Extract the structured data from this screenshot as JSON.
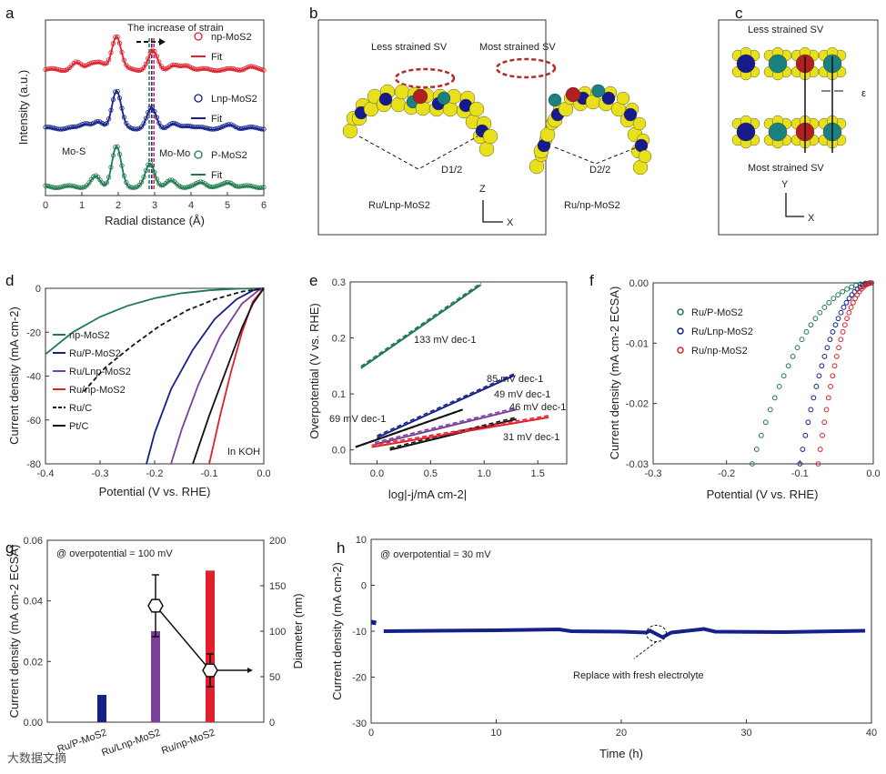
{
  "panel_labels": [
    "a",
    "b",
    "c",
    "d",
    "e",
    "f",
    "g",
    "h"
  ],
  "panel_b": {
    "left_title": "Less strained SV",
    "right_title": "Most strained SV",
    "left_d": "D1/2",
    "right_d": "D2/2",
    "left_name": "Ru/Lnp-MoS2",
    "right_name": "Ru/np-MoS2",
    "axis_z": "Z",
    "axis_x": "X"
  },
  "panel_c": {
    "top_title": "Less strained SV",
    "bottom_title": "Most strained SV",
    "epsilon": "ε",
    "axis_y": "Y",
    "axis_x": "X"
  },
  "watermark": "大数据文摘",
  "colors": {
    "green": "#1e7a4f",
    "blue": "#15208a",
    "purple": "#7a3f98",
    "red": "#e0202a",
    "black": "#111111"
  },
  "chart_data": [
    {
      "id": "a",
      "type": "line",
      "title": "The increase of strain",
      "xlabel": "Radial distance (Å)",
      "ylabel": "Intensity (a.u.)",
      "xlim": [
        0,
        6
      ],
      "xticks": [
        "0",
        "1",
        "2",
        "3",
        "4",
        "5",
        "6"
      ],
      "annotations": [
        "Mo-S",
        "Mo-Mo"
      ],
      "series": [
        {
          "name": "np-MoS2",
          "fit": "Fit",
          "color": "#e0202a",
          "offset": 2.1,
          "peaks": [
            [
              0.85,
              0.12
            ],
            [
              1.25,
              0.12
            ],
            [
              1.5,
              0.1
            ],
            [
              1.95,
              0.62
            ],
            [
              2.95,
              0.33
            ],
            [
              3.5,
              0.08
            ],
            [
              3.9,
              0.08
            ],
            [
              5.6,
              0.05
            ]
          ]
        },
        {
          "name": "Lnp-MoS2",
          "fit": "Fit",
          "color": "#15208a",
          "offset": 1.05,
          "peaks": [
            [
              1.1,
              0.1
            ],
            [
              1.45,
              0.1
            ],
            [
              1.95,
              0.68
            ],
            [
              2.92,
              0.36
            ],
            [
              3.5,
              0.07
            ],
            [
              3.9,
              0.06
            ],
            [
              5.1,
              0.06
            ]
          ]
        },
        {
          "name": "P-MoS2",
          "fit": "Fit",
          "color": "#1e7a4f",
          "offset": 0,
          "peaks": [
            [
              1.38,
              0.18
            ],
            [
              1.95,
              0.72
            ],
            [
              2.88,
              0.42
            ],
            [
              3.45,
              0.1
            ],
            [
              4.3,
              0.08
            ],
            [
              5.05,
              0.08
            ]
          ]
        }
      ]
    },
    {
      "id": "d",
      "type": "line",
      "xlabel": "Potential (V vs. RHE)",
      "ylabel": "Current density (mA cm-2)",
      "xlim": [
        -0.4,
        0
      ],
      "ylim": [
        -80,
        0
      ],
      "xticks": [
        "-0.4",
        "-0.3",
        "-0.2",
        "-0.1",
        "0.0"
      ],
      "yticks": [
        "0",
        "-20",
        "-40",
        "-60",
        "-80"
      ],
      "annotation": "In KOH",
      "series": [
        {
          "name": "np-MoS2",
          "color": "#1e7a4f",
          "dash": false,
          "points": [
            [
              -0.4,
              -30
            ],
            [
              -0.35,
              -20
            ],
            [
              -0.3,
              -13
            ],
            [
              -0.25,
              -8
            ],
            [
              -0.2,
              -4.5
            ],
            [
              -0.15,
              -2.2
            ],
            [
              -0.1,
              -0.9
            ],
            [
              -0.05,
              -0.2
            ],
            [
              0,
              0
            ]
          ]
        },
        {
          "name": "Ru/P-MoS2",
          "color": "#15208a",
          "dash": false,
          "points": [
            [
              -0.215,
              -80
            ],
            [
              -0.2,
              -66
            ],
            [
              -0.17,
              -46
            ],
            [
              -0.13,
              -28
            ],
            [
              -0.09,
              -14
            ],
            [
              -0.05,
              -5
            ],
            [
              -0.02,
              -1
            ],
            [
              0,
              0
            ]
          ]
        },
        {
          "name": "Ru/Lnp-MoS2",
          "color": "#7a3f98",
          "dash": false,
          "points": [
            [
              -0.17,
              -80
            ],
            [
              -0.15,
              -64
            ],
            [
              -0.12,
              -44
            ],
            [
              -0.08,
              -22
            ],
            [
              -0.04,
              -7
            ],
            [
              -0.01,
              -1
            ],
            [
              0,
              0
            ]
          ]
        },
        {
          "name": "Ru/np-MoS2",
          "color": "#e0202a",
          "dash": false,
          "points": [
            [
              -0.1,
              -80
            ],
            [
              -0.08,
              -58
            ],
            [
              -0.06,
              -38
            ],
            [
              -0.04,
              -20
            ],
            [
              -0.02,
              -6
            ],
            [
              0,
              0
            ]
          ]
        },
        {
          "name": "Ru/C",
          "color": "#111111",
          "dash": true,
          "points": [
            [
              -0.33,
              -47
            ],
            [
              -0.29,
              -36
            ],
            [
              -0.24,
              -26
            ],
            [
              -0.19,
              -17
            ],
            [
              -0.14,
              -10
            ],
            [
              -0.09,
              -5
            ],
            [
              -0.04,
              -1.5
            ],
            [
              0,
              0
            ]
          ]
        },
        {
          "name": "Pt/C",
          "color": "#111111",
          "dash": false,
          "points": [
            [
              -0.13,
              -80
            ],
            [
              -0.1,
              -58
            ],
            [
              -0.07,
              -38
            ],
            [
              -0.04,
              -18
            ],
            [
              -0.02,
              -7
            ],
            [
              0,
              0
            ]
          ]
        }
      ]
    },
    {
      "id": "e",
      "type": "line",
      "xlabel": "log|-j/mA cm-2|",
      "ylabel": "Overpotential (V vs. RHE)",
      "xlim": [
        -0.25,
        1.77
      ],
      "ylim": [
        -0.025,
        0.3
      ],
      "xticks": [
        "0.0",
        "0.5",
        "1.0",
        "1.5"
      ],
      "yticks": [
        "0.0",
        "0.1",
        "0.2",
        "0.3"
      ],
      "series": [
        {
          "label": "133 mV dec-1",
          "color": "#1e7a4f",
          "x": [
            -0.15,
            0.97
          ],
          "y": [
            0.146,
            0.295
          ]
        },
        {
          "label": "85 mV dec-1",
          "color": "#15208a",
          "x": [
            0.0,
            1.28
          ],
          "y": [
            0.022,
            0.133
          ]
        },
        {
          "label": "69 mV dec-1",
          "color": "#111111",
          "dash": true,
          "x": [
            -0.2,
            0.8
          ],
          "y": [
            0.005,
            0.072
          ]
        },
        {
          "label": "49 mV dec-1",
          "color": "#7a3f98",
          "x": [
            -0.02,
            1.3
          ],
          "y": [
            0.01,
            0.072
          ]
        },
        {
          "label": "46 mV dec-1",
          "color": "#111111",
          "x": [
            0.12,
            1.3
          ],
          "y": [
            0.0,
            0.055
          ]
        },
        {
          "label": "31 mV dec-1",
          "color": "#e0202a",
          "x": [
            -0.05,
            1.6
          ],
          "y": [
            0.005,
            0.058
          ]
        }
      ]
    },
    {
      "id": "f",
      "type": "scatter",
      "xlabel": "Potential (V vs. RHE)",
      "ylabel": "Current density (mA cm-2 ECSA)",
      "xlim": [
        -0.3,
        0
      ],
      "ylim": [
        -0.03,
        0
      ],
      "xticks": [
        "-0.3",
        "-0.2",
        "-0.1",
        "0.0"
      ],
      "yticks": [
        "0.00",
        "-0.01",
        "-0.02",
        "-0.03"
      ],
      "series": [
        {
          "name": "Ru/P-MoS2",
          "color": "#1e7a4f",
          "onset": -0.165
        },
        {
          "name": "Ru/Lnp-MoS2",
          "color": "#15208a",
          "onset": -0.1
        },
        {
          "name": "Ru/np-MoS2",
          "color": "#e0202a",
          "onset": -0.075
        }
      ]
    },
    {
      "id": "g",
      "type": "bar",
      "annotation": "@ overpotential = 100 mV",
      "ylabel": "Current density (mA cm-2 ECSA)",
      "y2label": "Diameter (nm)",
      "ylim": [
        0,
        0.06
      ],
      "y2lim": [
        0,
        200
      ],
      "yticks": [
        "0.00",
        "0.02",
        "0.04",
        "0.06"
      ],
      "y2ticks": [
        "0",
        "50",
        "100",
        "150",
        "200"
      ],
      "categories": [
        "Ru/P-MoS2",
        "Ru/Lnp-MoS2",
        "Ru/np-MoS2"
      ],
      "values": [
        0.009,
        0.03,
        0.05
      ],
      "bar_colors": [
        "#15208a",
        "#7a3f98",
        "#e0202a"
      ],
      "diameter": [
        null,
        128,
        57
      ],
      "diameter_err": [
        null,
        34,
        18
      ]
    },
    {
      "id": "h",
      "type": "line",
      "annotation": "@ overpotential = 30 mV",
      "note": "Replace with fresh electrolyte",
      "xlabel": "Time (h)",
      "ylabel": "Current density (mA cm-2)",
      "xlim": [
        0,
        40
      ],
      "ylim": [
        -30,
        10
      ],
      "xticks": [
        "0",
        "10",
        "20",
        "30",
        "40"
      ],
      "yticks": [
        "10",
        "0",
        "-10",
        "-20",
        "-30"
      ],
      "series": [
        {
          "color": "#15208a",
          "points": [
            [
              0,
              -8
            ],
            [
              0.4,
              -8.2
            ],
            [
              1,
              -10
            ],
            [
              5,
              -9.9
            ],
            [
              10,
              -9.8
            ],
            [
              15,
              -9.6
            ],
            [
              16,
              -10
            ],
            [
              20,
              -10.1
            ],
            [
              22,
              -10.3
            ],
            [
              22.3,
              -9.9
            ],
            [
              23.3,
              -11.3
            ],
            [
              24,
              -10.3
            ],
            [
              26,
              -9.7
            ],
            [
              26.6,
              -9.5
            ],
            [
              27.5,
              -10.1
            ],
            [
              33,
              -10.2
            ],
            [
              39.5,
              -9.9
            ]
          ]
        }
      ]
    }
  ]
}
